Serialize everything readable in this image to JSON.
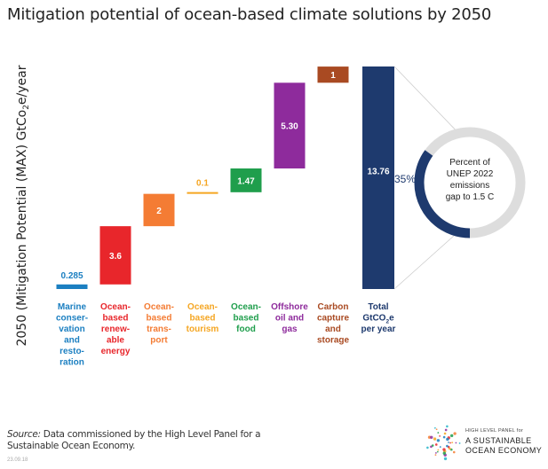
{
  "chart_data": {
    "type": "waterfall",
    "title": "Mitigation potential of ocean-based climate solutions by 2050",
    "ylabel": "2050 (Mitigation Potential (MAX) GtCo",
    "ylabel_sub": "2",
    "ylabel_tail": "e/year",
    "ylim": [
      0,
      14.5
    ],
    "categories": [
      {
        "lines": [
          "Marine",
          "conser-",
          "vation",
          "and",
          "resto-",
          "ration"
        ],
        "value": 0.285,
        "label": "0.285",
        "color": "#1b7fc1",
        "label_pos": "above"
      },
      {
        "lines": [
          "Ocean-",
          "based",
          "renew-",
          "able",
          "energy"
        ],
        "value": 3.6,
        "label": "3.6",
        "color": "#e8262b",
        "label_pos": "inside"
      },
      {
        "lines": [
          "Ocean-",
          "based",
          "trans-",
          "port"
        ],
        "value": 2,
        "label": "2",
        "color": "#f47c34",
        "label_pos": "inside"
      },
      {
        "lines": [
          "Ocean-",
          "based",
          "tourism"
        ],
        "value": 0.1,
        "label": "0.1",
        "color": "#f5a623",
        "label_pos": "above"
      },
      {
        "lines": [
          "Ocean-",
          "based",
          "food"
        ],
        "value": 1.47,
        "label": "1.47",
        "color": "#1f9e4c",
        "label_pos": "inside"
      },
      {
        "lines": [
          "Offshore",
          "oil and",
          "gas"
        ],
        "value": 5.3,
        "label": "5.30",
        "color": "#8e2b9c",
        "label_pos": "inside"
      },
      {
        "lines": [
          "Carbon",
          "capture",
          "and",
          "storage"
        ],
        "value": 1,
        "label": "1",
        "color": "#a94a22",
        "label_pos": "inside"
      }
    ],
    "total": {
      "lines": [
        "Total",
        "GtCO",
        "per year"
      ],
      "sub": "2",
      "tail": "e",
      "value": 13.76,
      "label": "13.76",
      "color": "#1e3a6e"
    },
    "donut": {
      "percent": 35,
      "percent_label": "35%",
      "text_lines": [
        "Percent of",
        "UNEP 2022",
        "emissions",
        "gap to 1.5 C"
      ],
      "fill_color": "#1e3a6e",
      "track_color": "#dddddd"
    }
  },
  "source": {
    "label": "Source:",
    "text": "Data commissioned by the High Level Panel for a Sustainable Ocean Economy."
  },
  "code": "23.09.18",
  "logo": {
    "line1": "HIGH LEVEL PANEL for",
    "line2": "A SUSTAINABLE",
    "line3": "OCEAN ECONOMY"
  }
}
